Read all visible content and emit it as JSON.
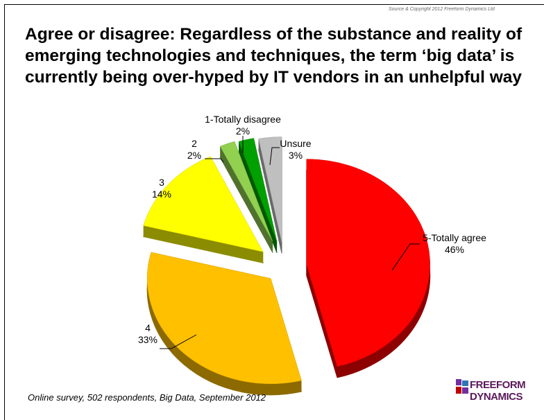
{
  "copyright": "Source & Copyright 2012 Freeform Dynamics Ltd",
  "footnote": "Online survey, 502 respondents, Big Data, September 2012",
  "logo": {
    "line1": "FREEFORM",
    "line2": "DYNAMICS"
  },
  "chart_data": {
    "type": "pie",
    "title": "Agree or disagree: Regardless of the substance and reality of emerging technologies and techniques, the term ‘big data’ is currently being over-hyped by IT vendors in an unhelpful way",
    "exploded": true,
    "style": "3d",
    "slices": [
      {
        "label": "5-Totally agree",
        "value": 46,
        "value_label": "46%",
        "color": "#ff0000"
      },
      {
        "label": "4",
        "value": 33,
        "value_label": "33%",
        "color": "#ffc000"
      },
      {
        "label": "3",
        "value": 14,
        "value_label": "14%",
        "color": "#ffff00"
      },
      {
        "label": "2",
        "value": 2,
        "value_label": "2%",
        "color": "#92d050"
      },
      {
        "label": "1-Totally disagree",
        "value": 2,
        "value_label": "2%",
        "color": "#00a000"
      },
      {
        "label": "Unsure",
        "value": 3,
        "value_label": "3%",
        "color": "#bfbfbf"
      }
    ]
  }
}
